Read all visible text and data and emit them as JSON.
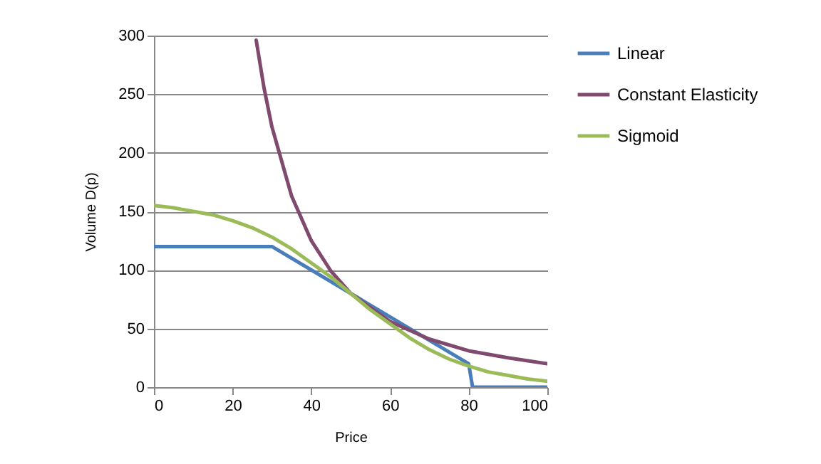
{
  "chart_data": {
    "type": "line",
    "xlabel": "Price",
    "ylabel": "Volume D(p)",
    "xlim": [
      0,
      100
    ],
    "ylim": [
      0,
      300
    ],
    "xticks": [
      0,
      20,
      40,
      60,
      80,
      100
    ],
    "yticks": [
      0,
      50,
      100,
      150,
      200,
      250,
      300
    ],
    "grid": "y",
    "legend": "right",
    "marker": "none",
    "line_style": "solid",
    "series": [
      {
        "name": "Linear",
        "color": "#4a7ebb",
        "x": [
          0,
          30,
          80,
          81,
          100
        ],
        "values": [
          120,
          120,
          20,
          0,
          0
        ]
      },
      {
        "name": "Constant Elasticity",
        "color": "#7f4a6e",
        "x": [
          26,
          28,
          30,
          35,
          40,
          45,
          50,
          60,
          70,
          80,
          90,
          100
        ],
        "values": [
          296,
          255,
          222,
          163,
          125,
          99,
          80,
          56,
          41,
          31,
          25,
          20
        ]
      },
      {
        "name": "Sigmoid",
        "color": "#9bbb59",
        "x": [
          0,
          5,
          10,
          15,
          20,
          25,
          30,
          35,
          40,
          45,
          50,
          55,
          60,
          65,
          70,
          75,
          80,
          85,
          90,
          95,
          100
        ],
        "values": [
          155,
          153,
          150,
          147,
          142,
          136,
          128,
          118,
          106,
          94,
          80,
          66,
          54,
          42,
          32,
          24,
          18,
          13,
          10,
          7,
          5
        ]
      }
    ]
  }
}
